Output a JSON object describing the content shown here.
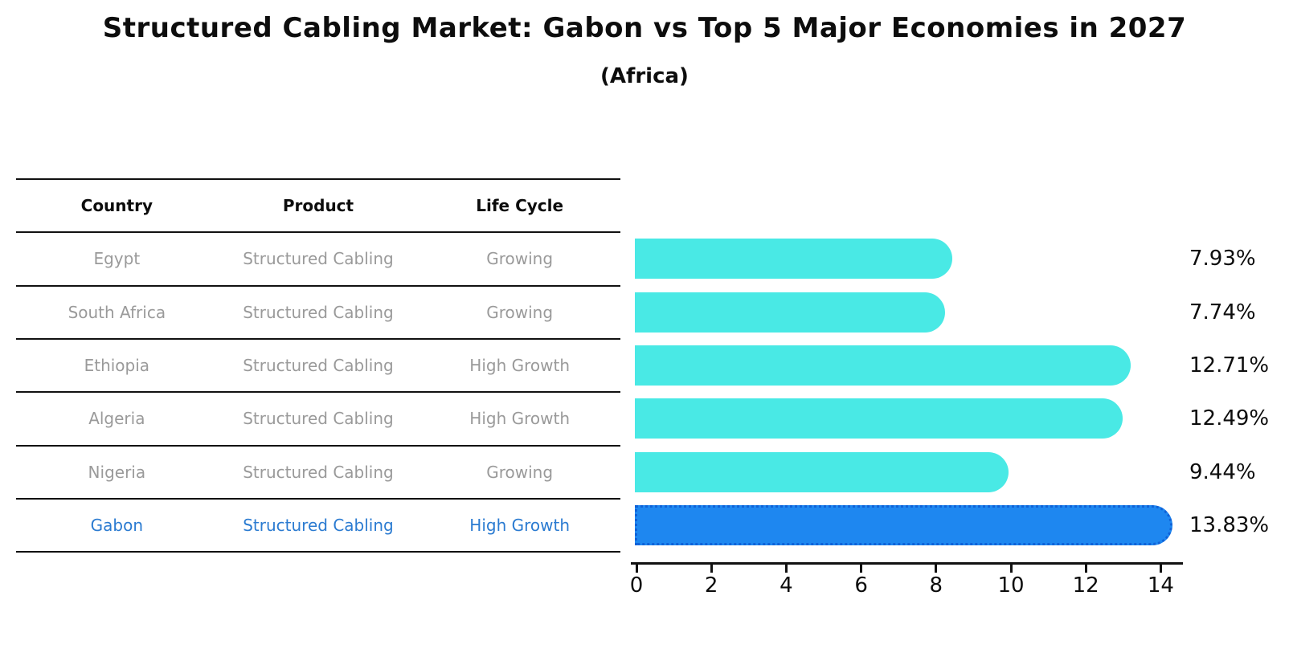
{
  "title": "Structured Cabling Market: Gabon vs Top 5 Major Economies in 2027",
  "subtitle": "(Africa)",
  "table": {
    "headers": [
      "Country",
      "Product",
      "Life Cycle"
    ],
    "rows": [
      {
        "country": "Egypt",
        "product": "Structured Cabling",
        "life_cycle": "Growing",
        "highlight": false
      },
      {
        "country": "South Africa",
        "product": "Structured Cabling",
        "life_cycle": "Growing",
        "highlight": false
      },
      {
        "country": "Ethiopia",
        "product": "Structured Cabling",
        "life_cycle": "High Growth",
        "highlight": false
      },
      {
        "country": "Algeria",
        "product": "Structured Cabling",
        "life_cycle": "High Growth",
        "highlight": false
      },
      {
        "country": "Nigeria",
        "product": "Structured Cabling",
        "life_cycle": "Growing",
        "highlight": false
      },
      {
        "country": "Gabon",
        "product": "Structured Cabling",
        "life_cycle": "High Growth",
        "highlight": true
      }
    ]
  },
  "chart_data": {
    "type": "bar",
    "orientation": "horizontal",
    "title": "Structured Cabling Market: Gabon vs Top 5 Major Economies in 2027 (Africa)",
    "categories": [
      "Egypt",
      "South Africa",
      "Ethiopia",
      "Algeria",
      "Nigeria",
      "Gabon"
    ],
    "values": [
      7.93,
      7.74,
      12.71,
      12.49,
      9.44,
      13.83
    ],
    "value_labels": [
      "7.93%",
      "7.74%",
      "12.71%",
      "12.49%",
      "9.44%",
      "13.83%"
    ],
    "xticks": [
      0,
      2,
      4,
      6,
      8,
      10,
      12,
      14
    ],
    "xlim": [
      0,
      14.6
    ],
    "grid": false,
    "legend": false,
    "highlight_index": 5
  },
  "colors": {
    "bar": "#49E9E5",
    "highlight_bar": "#1E87F0",
    "highlight_border": "#0F62D8",
    "highlight_text": "#2B7BD1",
    "muted_text": "#9A9A9A",
    "primary_text": "#0D0D0D"
  }
}
